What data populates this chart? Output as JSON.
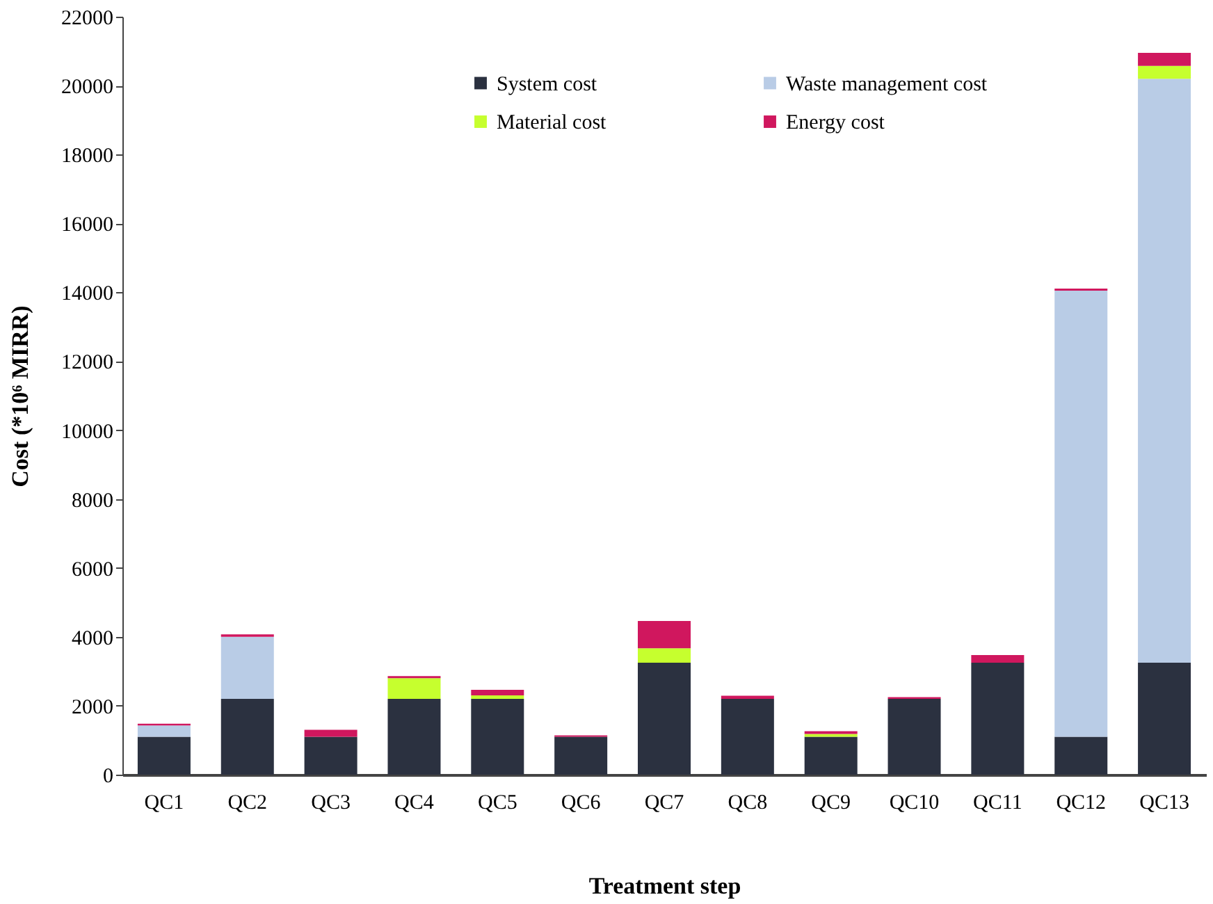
{
  "chart_data": {
    "type": "bar",
    "stacked": true,
    "xlabel": "Treatment step",
    "ylabel": "Cost (*10⁶ MIRR)",
    "categories": [
      "QC1",
      "QC2",
      "QC3",
      "QC4",
      "QC5",
      "QC6",
      "QC7",
      "QC8",
      "QC9",
      "QC10",
      "QC11",
      "QC12",
      "QC13"
    ],
    "series": [
      {
        "name": "System cost",
        "color": "#2b3140",
        "values": [
          1100,
          2200,
          1100,
          2200,
          2200,
          1100,
          3250,
          2200,
          1100,
          2200,
          3250,
          1100,
          3250
        ]
      },
      {
        "name": "Waste management cost",
        "color": "#b9cce6",
        "values": [
          330,
          1800,
          0,
          0,
          0,
          0,
          0,
          0,
          0,
          0,
          0,
          12950,
          16950
        ]
      },
      {
        "name": "Material cost",
        "color": "#c6ff2e",
        "values": [
          0,
          0,
          0,
          600,
          100,
          0,
          420,
          0,
          80,
          0,
          0,
          0,
          370
        ]
      },
      {
        "name": "Energy cost",
        "color": "#d0175e",
        "values": [
          50,
          70,
          200,
          60,
          160,
          40,
          790,
          90,
          80,
          50,
          220,
          60,
          380
        ]
      }
    ],
    "ylim": [
      0,
      22000
    ],
    "yticks": [
      0,
      2000,
      4000,
      6000,
      8000,
      10000,
      12000,
      14000,
      16000,
      18000,
      20000,
      22000
    ],
    "grid": false,
    "legend": "top"
  }
}
